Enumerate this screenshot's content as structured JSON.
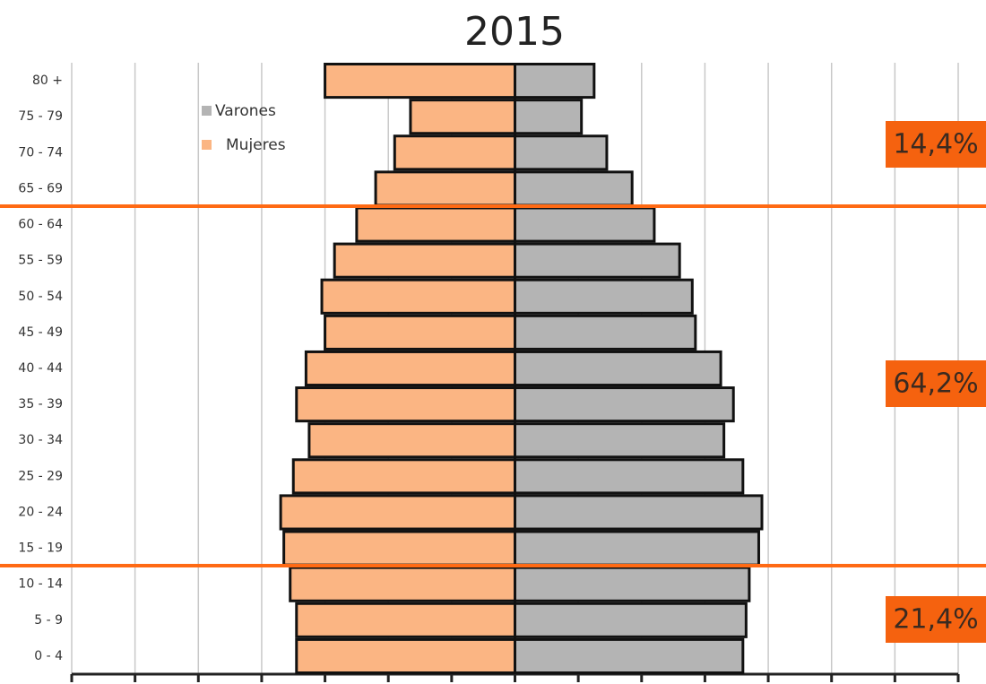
{
  "chart_data": {
    "type": "pyramid",
    "title": "2015",
    "categories": [
      "0 - 4",
      "5 - 9",
      "10 - 14",
      "15 - 19",
      "20 - 24",
      "25 - 29",
      "30 - 34",
      "35 - 39",
      "40 - 44",
      "45 - 49",
      "50 - 54",
      "55 - 59",
      "60 - 64",
      "65 - 69",
      "70 - 74",
      "75 - 79",
      "80 +"
    ],
    "series": [
      {
        "name": "Varones",
        "color": "#b4b4b4",
        "values": [
          3.6,
          3.65,
          3.7,
          3.85,
          3.9,
          3.6,
          3.3,
          3.45,
          3.25,
          2.85,
          2.8,
          2.6,
          2.2,
          1.85,
          1.45,
          1.05,
          1.25
        ]
      },
      {
        "name": "Mujeres",
        "color": "#fbb583",
        "values": [
          3.45,
          3.45,
          3.55,
          3.65,
          3.7,
          3.5,
          3.25,
          3.45,
          3.3,
          3.0,
          3.05,
          2.85,
          2.5,
          2.2,
          1.9,
          1.65,
          3.0
        ]
      }
    ],
    "xlim": [
      -7,
      7
    ],
    "xticks": [
      -7,
      -6,
      -5,
      -4,
      -3,
      -2,
      -1,
      0,
      1,
      2,
      3,
      4,
      5,
      6,
      7
    ],
    "grid": true,
    "annotations": [
      "14,4%",
      "64,2%",
      "21,4%"
    ]
  }
}
